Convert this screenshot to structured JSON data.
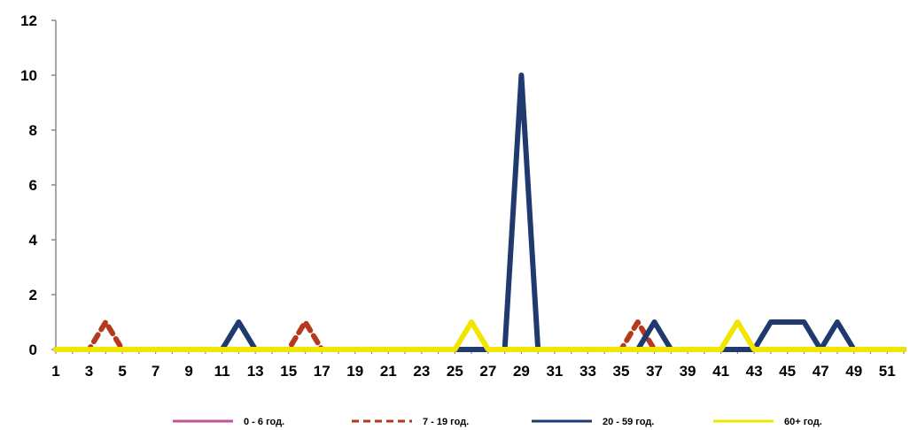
{
  "chart_data": {
    "type": "line",
    "x": [
      1,
      2,
      3,
      4,
      5,
      6,
      7,
      8,
      9,
      10,
      11,
      12,
      13,
      14,
      15,
      16,
      17,
      18,
      19,
      20,
      21,
      22,
      23,
      24,
      25,
      26,
      27,
      28,
      29,
      30,
      31,
      32,
      33,
      34,
      35,
      36,
      37,
      38,
      39,
      40,
      41,
      42,
      43,
      44,
      45,
      46,
      47,
      48,
      49,
      50,
      51,
      52
    ],
    "x_tick_labels": [
      "1",
      "3",
      "5",
      "7",
      "9",
      "11",
      "13",
      "15",
      "17",
      "19",
      "21",
      "23",
      "25",
      "27",
      "29",
      "31",
      "33",
      "35",
      "37",
      "39",
      "41",
      "43",
      "45",
      "47",
      "49",
      "51"
    ],
    "y_tick_labels": [
      "0",
      "2",
      "4",
      "6",
      "8",
      "10",
      "12"
    ],
    "ylim": [
      0,
      12
    ],
    "xlim": [
      1,
      52
    ],
    "grid": false,
    "legend_position": "bottom",
    "series": [
      {
        "name": "0 - 6 год.",
        "color": "#c2559a",
        "dash": "solid",
        "values": [
          0,
          0,
          0,
          0,
          0,
          0,
          0,
          0,
          0,
          0,
          0,
          0,
          0,
          0,
          0,
          0,
          0,
          0,
          0,
          0,
          0,
          0,
          0,
          0,
          0,
          0,
          0,
          0,
          0,
          0,
          0,
          0,
          0,
          0,
          0,
          0,
          0,
          0,
          0,
          0,
          0,
          0,
          0,
          0,
          0,
          0,
          0,
          0,
          0,
          0,
          0,
          0
        ]
      },
      {
        "name": "7 - 19 год.",
        "color": "#b5391e",
        "dash": "dashed",
        "values": [
          0,
          0,
          0,
          1,
          0,
          0,
          0,
          0,
          0,
          0,
          0,
          0,
          0,
          0,
          0,
          1,
          0,
          0,
          0,
          0,
          0,
          0,
          0,
          0,
          0,
          0,
          0,
          0,
          0,
          0,
          0,
          0,
          0,
          0,
          0,
          1,
          0,
          0,
          0,
          0,
          0,
          0,
          0,
          0,
          0,
          0,
          0,
          0,
          0,
          0,
          0,
          0
        ]
      },
      {
        "name": "20 - 59 год.",
        "color": "#1f3a6e",
        "dash": "solid",
        "values": [
          0,
          0,
          0,
          0,
          0,
          0,
          0,
          0,
          0,
          0,
          0,
          1,
          0,
          0,
          0,
          0,
          0,
          0,
          0,
          0,
          0,
          0,
          0,
          0,
          0,
          0,
          0,
          0,
          10,
          0,
          0,
          0,
          0,
          0,
          0,
          0,
          1,
          0,
          0,
          0,
          0,
          0,
          0,
          1,
          1,
          1,
          0,
          1,
          0,
          0,
          0,
          0
        ]
      },
      {
        "name": "60+ год.",
        "color": "#f2e600",
        "dash": "solid",
        "values": [
          0,
          0,
          0,
          0,
          0,
          0,
          0,
          0,
          0,
          0,
          0,
          0,
          0,
          0,
          0,
          0,
          0,
          0,
          0,
          0,
          0,
          0,
          0,
          0,
          0,
          1,
          0,
          0,
          0,
          0,
          0,
          0,
          0,
          0,
          0,
          0,
          0,
          0,
          0,
          0,
          0,
          1,
          0,
          0,
          0,
          0,
          0,
          0,
          0,
          0,
          0,
          0
        ]
      }
    ]
  }
}
